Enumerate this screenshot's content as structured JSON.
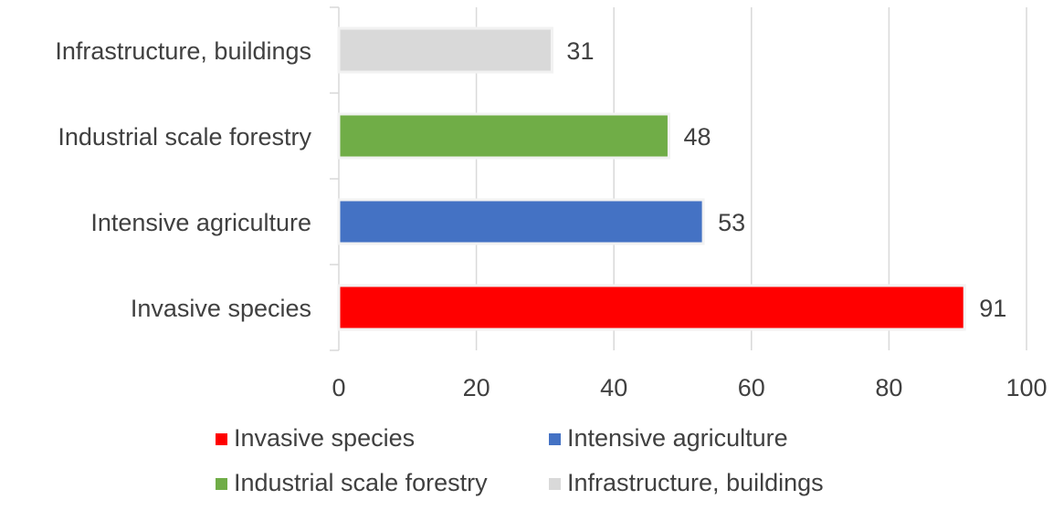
{
  "chart_data": {
    "type": "bar",
    "orientation": "horizontal",
    "categories": [
      "Infrastructure, buildings",
      "Industrial scale forestry",
      "Intensive agriculture",
      "Invasive species"
    ],
    "values": [
      31,
      48,
      53,
      91
    ],
    "colors": [
      "#d9d9d9",
      "#70ad47",
      "#4472c4",
      "#ff0000"
    ],
    "xlim": [
      0,
      100
    ],
    "xticks": [
      "0",
      "20",
      "40",
      "60",
      "80",
      "100"
    ],
    "xtick_values": [
      0,
      20,
      40,
      60,
      80,
      100
    ],
    "grid": true,
    "legend_placement": "bottom",
    "legend": [
      {
        "label": "Invasive species",
        "color": "#ff0000"
      },
      {
        "label": "Intensive agriculture",
        "color": "#4472c4"
      },
      {
        "label": "Industrial scale forestry",
        "color": "#70ad47"
      },
      {
        "label": "Infrastructure, buildings",
        "color": "#d9d9d9"
      }
    ]
  }
}
